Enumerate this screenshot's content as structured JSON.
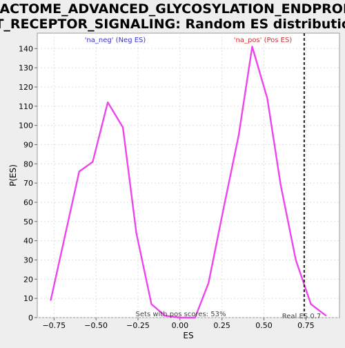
{
  "chart_data": {
    "type": "line",
    "title_lines": [
      "REACTOME_ADVANCED_GLYCOSYLATION_ENDPRODU",
      "CT_RECEPTOR_SIGNALING: Random ES distribution"
    ],
    "xlabel": "ES",
    "ylabel": "P(ES)",
    "xlim": [
      -0.85,
      0.95
    ],
    "ylim": [
      0,
      148
    ],
    "x_ticks": [
      -0.75,
      -0.5,
      -0.25,
      0.0,
      0.25,
      0.5,
      0.75
    ],
    "x_tick_labels": [
      "−0.75",
      "−0.50",
      "−0.25",
      "0.00",
      "0.25",
      "0.50",
      "0.75"
    ],
    "y_ticks": [
      0,
      10,
      20,
      30,
      40,
      50,
      60,
      70,
      80,
      90,
      100,
      110,
      120,
      130,
      140
    ],
    "grid": true,
    "series": [
      {
        "color": "#ee44ee",
        "x": [
          -0.77,
          -0.6,
          -0.52,
          -0.43,
          -0.34,
          -0.26,
          -0.17,
          -0.09,
          0.0,
          0.09,
          0.17,
          0.26,
          0.35,
          0.43,
          0.52,
          0.6,
          0.69,
          0.78,
          0.87
        ],
        "y": [
          9,
          76,
          81,
          112,
          99,
          44,
          7,
          1,
          0,
          0,
          18,
          57,
          95,
          141,
          114,
          69,
          30,
          7,
          1
        ]
      }
    ],
    "annotations": {
      "neg_label": "'na_neg' (Neg ES)",
      "neg_color": "#3333cc",
      "pos_label": "'na_pos' (Pos ES)",
      "pos_color": "#cc3333",
      "pos_scores_text": "Sets with pos scores: 53%",
      "real_es_label": "Real ES 0.7",
      "real_es_value": 0.74
    }
  }
}
